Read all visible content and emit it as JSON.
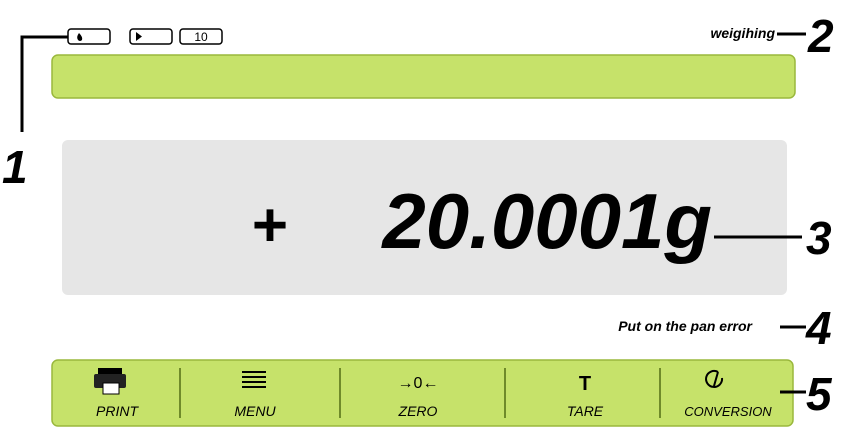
{
  "status": {
    "counter": "10",
    "mode": "weigihing"
  },
  "display": {
    "sign": "+",
    "reading": "20.0001g"
  },
  "message": "Put on the pan error",
  "buttons": [
    {
      "label": "PRINT"
    },
    {
      "label": "MENU"
    },
    {
      "label": "ZERO",
      "icon": "→0←"
    },
    {
      "label": "TARE",
      "icon": "T"
    },
    {
      "label": "CONVERSION"
    }
  ],
  "callouts": [
    "1",
    "2",
    "3",
    "4",
    "5"
  ]
}
